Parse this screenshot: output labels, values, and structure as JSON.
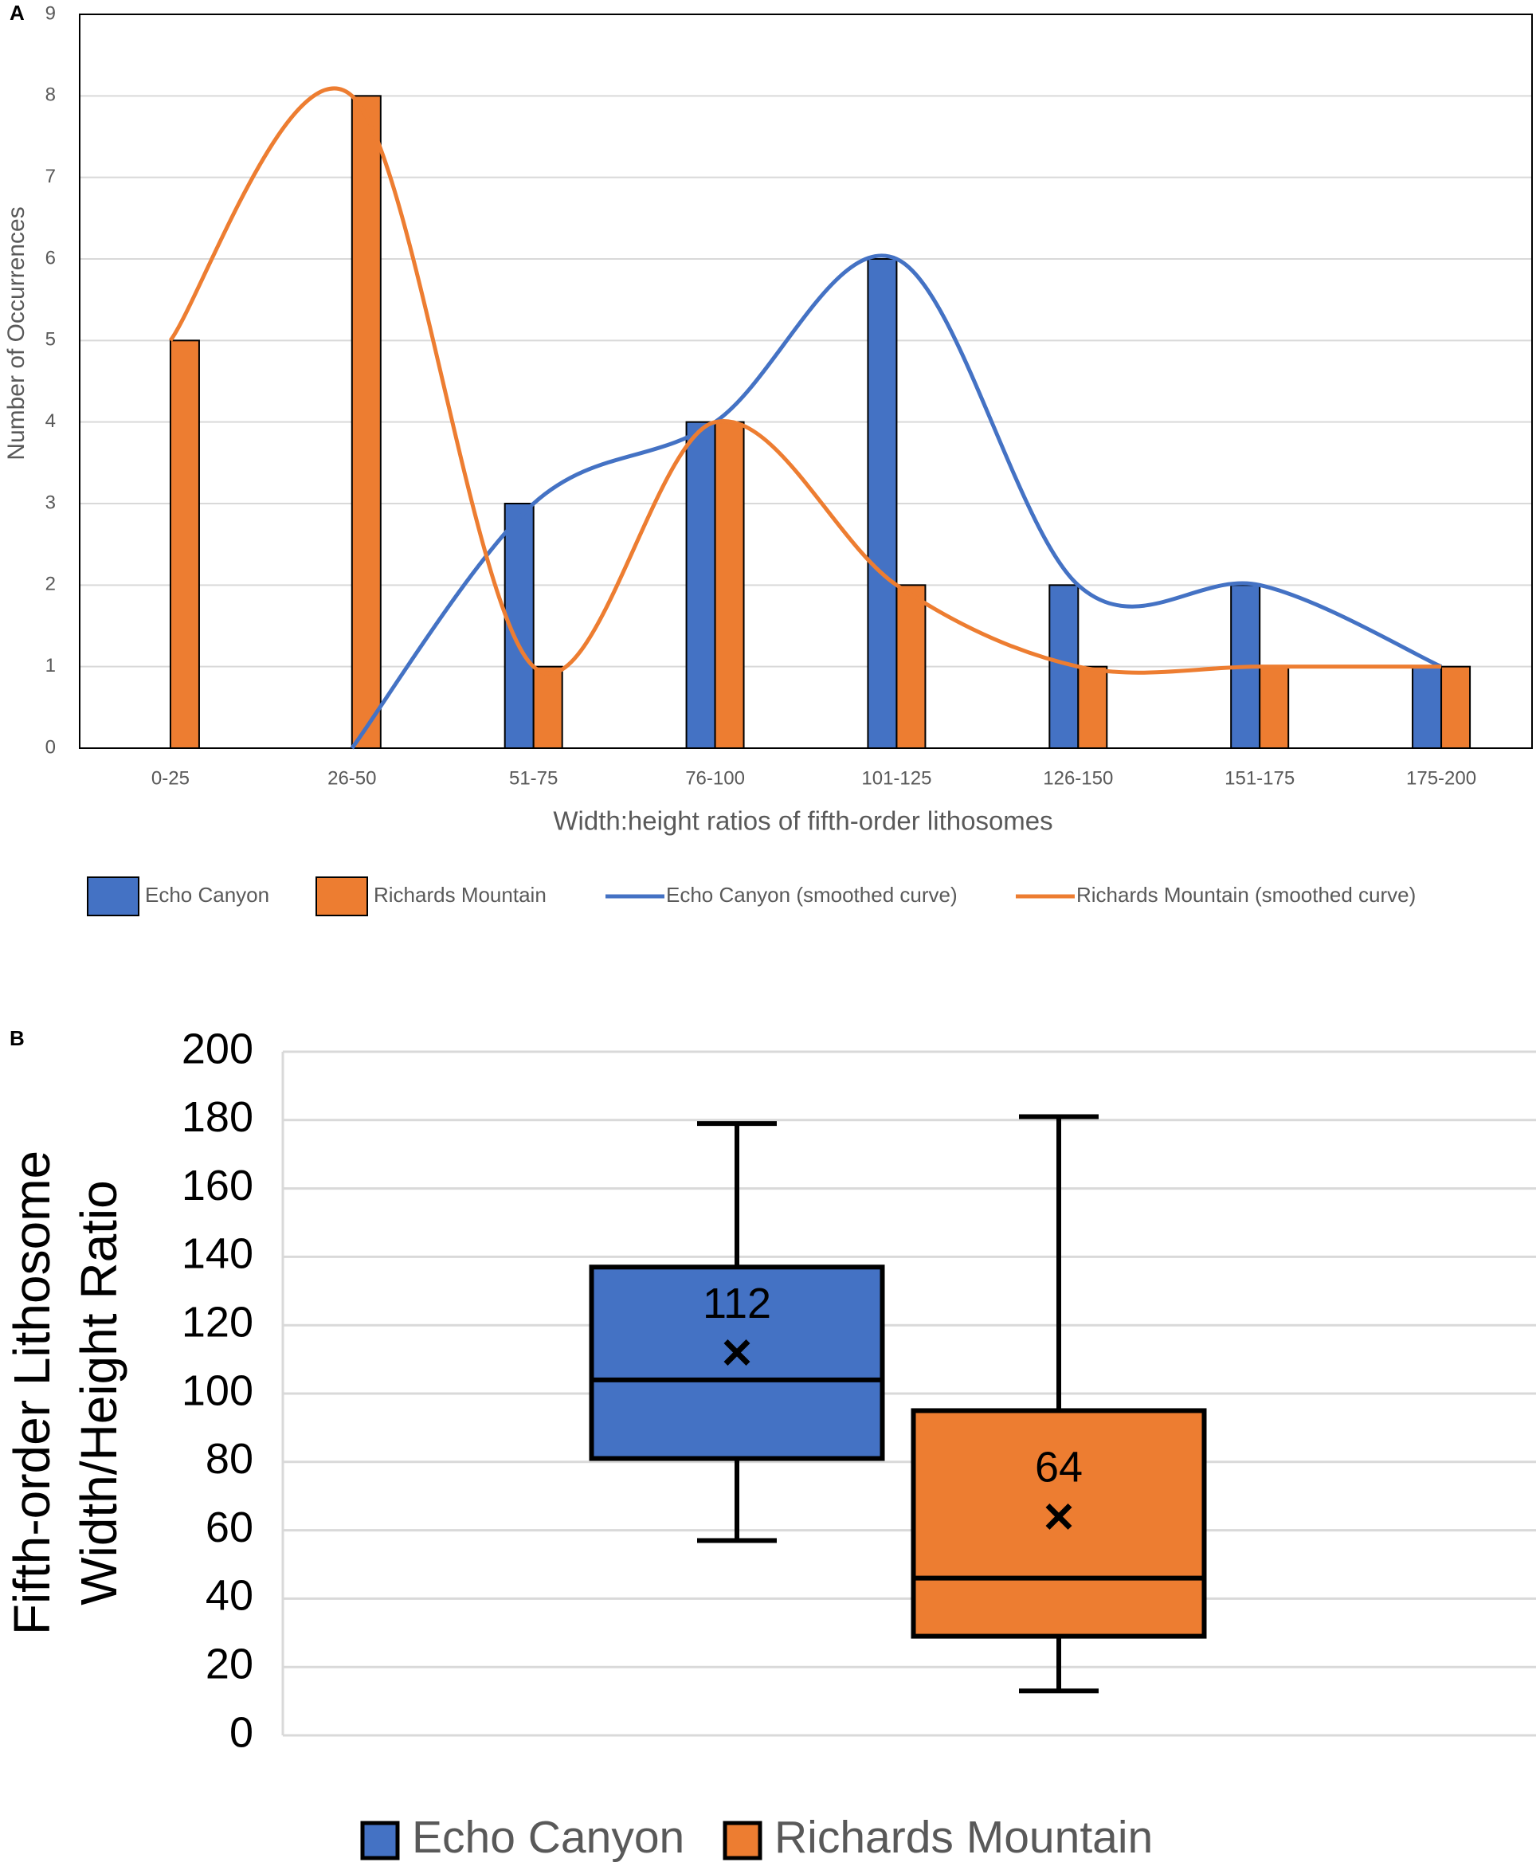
{
  "chart_data": [
    {
      "type": "bar",
      "panel": "A",
      "xlabel": "Width:height ratios of fifth-order lithosomes",
      "ylabel": "Number of Occurrences",
      "categories": [
        "0-25",
        "26-50",
        "51-75",
        "76-100",
        "101-125",
        "126-150",
        "151-175",
        "175-200"
      ],
      "series": [
        {
          "name": "Echo Canyon",
          "kind": "bar",
          "color": "#4472c4",
          "values": [
            0,
            0,
            3,
            4,
            6,
            2,
            2,
            1
          ]
        },
        {
          "name": "Richards Mountain",
          "kind": "bar",
          "color": "#ed7d31",
          "values": [
            5,
            8,
            1,
            4,
            2,
            1,
            1,
            1
          ]
        },
        {
          "name": "Echo Canyon (smoothed curve)",
          "kind": "line",
          "color": "#4472c4",
          "values": [
            null,
            0,
            3,
            4,
            6,
            2,
            2,
            1
          ]
        },
        {
          "name": "Richards Mountain (smoothed curve)",
          "kind": "line",
          "color": "#ed7d31",
          "values": [
            5,
            8,
            1,
            4,
            2,
            1,
            1,
            1
          ]
        }
      ],
      "ylim": [
        0,
        9
      ],
      "yticks": [
        0,
        1,
        2,
        3,
        4,
        5,
        6,
        7,
        8,
        9
      ],
      "grid": true,
      "legend": "bottom"
    },
    {
      "type": "box",
      "panel": "B",
      "ylabel": [
        "Fifth-order Lithosome",
        "Width/Height Ratio"
      ],
      "series": [
        {
          "name": "Echo Canyon",
          "color": "#4472c4",
          "min": 57,
          "q1": 81,
          "median": 104,
          "q3": 137,
          "max": 179,
          "mean": 112
        },
        {
          "name": "Richards Mountain",
          "color": "#ed7d31",
          "min": 13,
          "q1": 29,
          "median": 46,
          "q3": 95,
          "max": 181,
          "mean": 64
        }
      ],
      "ylim": [
        0,
        200
      ],
      "yticks": [
        0,
        20,
        40,
        60,
        80,
        100,
        120,
        140,
        160,
        180,
        200
      ],
      "grid": true,
      "legend": "bottom"
    }
  ]
}
